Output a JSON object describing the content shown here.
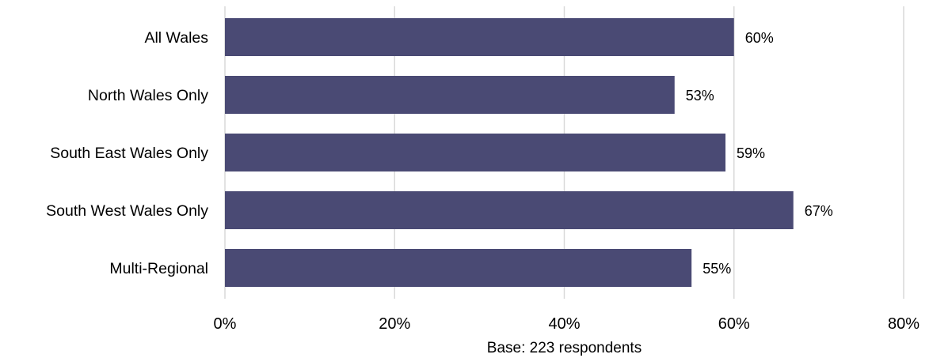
{
  "chart_data": {
    "type": "bar",
    "orientation": "horizontal",
    "categories": [
      "All Wales",
      "North Wales Only",
      "South East Wales Only",
      "South West Wales Only",
      "Multi-Regional"
    ],
    "values": [
      60,
      53,
      59,
      67,
      55
    ],
    "data_labels": [
      "60%",
      "53%",
      "59%",
      "67%",
      "55%"
    ],
    "xlim": [
      0,
      80
    ],
    "x_ticks": [
      0,
      20,
      40,
      60,
      80
    ],
    "x_tick_labels": [
      "0%",
      "20%",
      "40%",
      "60%",
      "80%"
    ],
    "xlabel": "Base: 223 respondents",
    "title": "",
    "ylabel": "",
    "grid": "vertical",
    "legend": "none",
    "colors": {
      "bar": "#4a4a74",
      "grid": "#d9d9d9"
    }
  }
}
